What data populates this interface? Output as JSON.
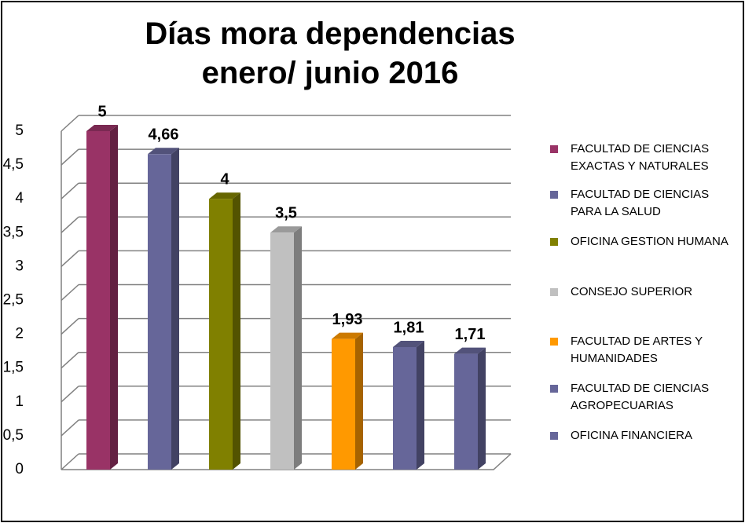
{
  "chart_data": {
    "type": "bar3d",
    "title": "Días mora dependencias enero/ junio 2016",
    "series": [
      {
        "name": "FACULTAD DE CIENCIAS EXACTAS Y NATURALES",
        "color": "#993366",
        "values": [
          5
        ],
        "value_labels": [
          "5"
        ]
      },
      {
        "name": "FACULTAD DE CIENCIAS PARA LA SALUD",
        "color": "#666699",
        "values": [
          4.66
        ],
        "value_labels": [
          "4,66"
        ]
      },
      {
        "name": "OFICINA GESTION HUMANA",
        "color": "#808000",
        "values": [
          4
        ],
        "value_labels": [
          "4"
        ]
      },
      {
        "name": "CONSEJO SUPERIOR",
        "color": "#c0c0c0",
        "values": [
          3.5
        ],
        "value_labels": [
          "3,5"
        ]
      },
      {
        "name": "FACULTAD DE ARTES Y HUMANIDADES",
        "color": "#ff9900",
        "values": [
          1.93
        ],
        "value_labels": [
          "1,93"
        ]
      },
      {
        "name": "FACULTAD DE CIENCIAS AGROPECUARIAS",
        "color": "#666699",
        "values": [
          1.81
        ],
        "value_labels": [
          "1,81"
        ]
      },
      {
        "name": "OFICINA FINANCIERA",
        "color": "#666699",
        "values": [
          1.71
        ],
        "value_labels": [
          "1,71"
        ]
      }
    ],
    "ylim": [
      0,
      5
    ],
    "yticks": [
      0,
      {
        "value": 0.5,
        "label": "0,5"
      },
      1,
      {
        "value": 1.5,
        "label": "1,5"
      },
      2,
      {
        "value": 2.5,
        "label": "2,5"
      },
      3,
      {
        "value": 3.5,
        "label": "3,5"
      },
      4,
      {
        "value": 4.5,
        "label": "4,5"
      },
      5
    ],
    "grid": true
  }
}
